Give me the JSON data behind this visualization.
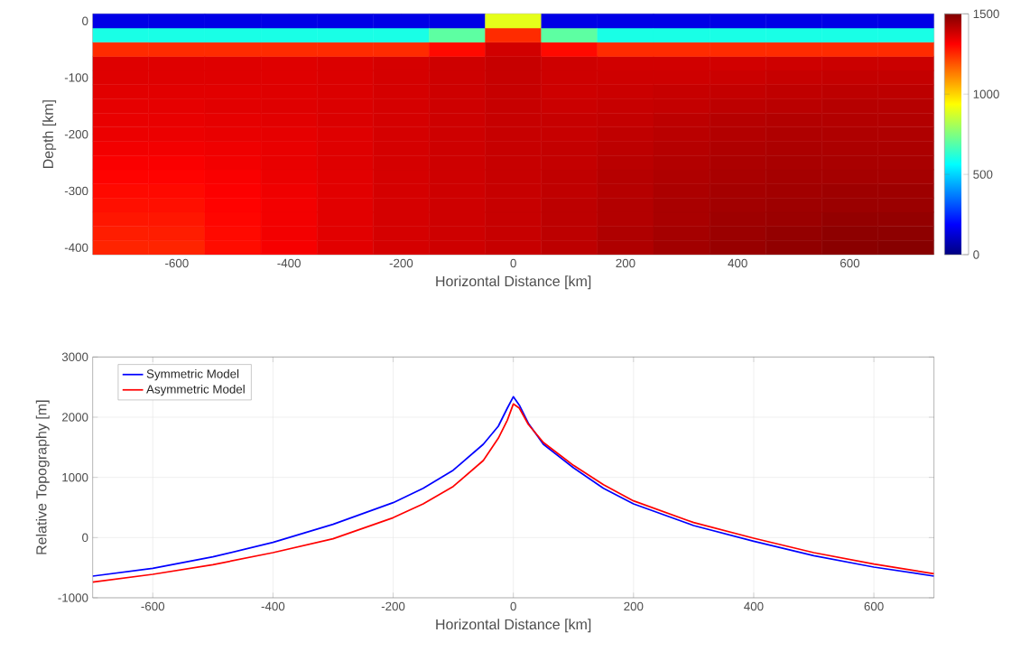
{
  "chart_data": [
    {
      "type": "heatmap",
      "xlabel": "Horizontal Distance [km]",
      "ylabel": "Depth [km]",
      "clim": [
        0,
        1500
      ],
      "cticks": [
        0,
        500,
        1000,
        1500
      ],
      "categories": [
        null,
        "-600",
        null,
        "-400",
        null,
        "-200",
        null,
        "0",
        null,
        "200",
        null,
        "400",
        null,
        "600",
        null
      ],
      "y_categories": [
        "0",
        null,
        null,
        null,
        "-100",
        null,
        null,
        null,
        "-200",
        null,
        null,
        null,
        "-300",
        null,
        null,
        null,
        "-400"
      ],
      "cells": [
        [
          150,
          150,
          150,
          150,
          150,
          150,
          150,
          900,
          150,
          150,
          150,
          150,
          150,
          150,
          150
        ],
        [
          600,
          600,
          600,
          600,
          600,
          600,
          700,
          1250,
          700,
          600,
          600,
          600,
          600,
          600,
          600
        ],
        [
          1250,
          1250,
          1250,
          1250,
          1250,
          1250,
          1300,
          1380,
          1300,
          1250,
          1250,
          1250,
          1250,
          1250,
          1250
        ],
        [
          1360,
          1360,
          1360,
          1360,
          1365,
          1375,
          1385,
          1395,
          1385,
          1380,
          1380,
          1380,
          1385,
          1390,
          1390
        ],
        [
          1360,
          1360,
          1360,
          1360,
          1365,
          1375,
          1385,
          1395,
          1385,
          1385,
          1385,
          1390,
          1395,
          1400,
          1400
        ],
        [
          1355,
          1355,
          1355,
          1360,
          1365,
          1375,
          1385,
          1395,
          1385,
          1390,
          1395,
          1400,
          1405,
          1410,
          1410
        ],
        [
          1350,
          1350,
          1355,
          1360,
          1365,
          1375,
          1385,
          1395,
          1390,
          1395,
          1400,
          1410,
          1415,
          1420,
          1420
        ],
        [
          1345,
          1345,
          1350,
          1355,
          1365,
          1375,
          1385,
          1395,
          1395,
          1400,
          1410,
          1420,
          1425,
          1425,
          1425
        ],
        [
          1340,
          1340,
          1345,
          1350,
          1360,
          1375,
          1385,
          1395,
          1395,
          1405,
          1415,
          1425,
          1430,
          1430,
          1430
        ],
        [
          1330,
          1330,
          1335,
          1345,
          1360,
          1375,
          1385,
          1395,
          1400,
          1410,
          1420,
          1430,
          1435,
          1435,
          1435
        ],
        [
          1320,
          1320,
          1330,
          1345,
          1360,
          1375,
          1385,
          1395,
          1400,
          1415,
          1425,
          1435,
          1440,
          1440,
          1440
        ],
        [
          1310,
          1310,
          1320,
          1340,
          1355,
          1375,
          1385,
          1395,
          1405,
          1420,
          1430,
          1440,
          1445,
          1445,
          1445
        ],
        [
          1300,
          1300,
          1315,
          1335,
          1355,
          1375,
          1385,
          1395,
          1405,
          1420,
          1435,
          1445,
          1450,
          1455,
          1455
        ],
        [
          1290,
          1290,
          1310,
          1330,
          1355,
          1375,
          1385,
          1395,
          1410,
          1425,
          1440,
          1450,
          1455,
          1460,
          1460
        ],
        [
          1280,
          1280,
          1305,
          1330,
          1355,
          1375,
          1385,
          1395,
          1410,
          1425,
          1440,
          1455,
          1460,
          1470,
          1470
        ],
        [
          1270,
          1270,
          1300,
          1330,
          1355,
          1375,
          1385,
          1395,
          1410,
          1430,
          1445,
          1460,
          1470,
          1480,
          1480
        ],
        [
          1260,
          1260,
          1295,
          1325,
          1355,
          1375,
          1385,
          1395,
          1410,
          1430,
          1450,
          1465,
          1475,
          1485,
          1490
        ]
      ]
    },
    {
      "type": "line",
      "xlabel": "Horizontal Distance [km]",
      "ylabel": "Relative Topography [m]",
      "xlim": [
        -700,
        700
      ],
      "xticks": [
        -600,
        -400,
        -200,
        0,
        200,
        400,
        600
      ],
      "ylim": [
        -1000,
        3000
      ],
      "yticks": [
        -1000,
        0,
        1000,
        2000,
        3000
      ],
      "grid": true,
      "legend": "top left",
      "marker": "none",
      "line_style": "solid",
      "x": [
        -700,
        -600,
        -500,
        -400,
        -300,
        -200,
        -150,
        -100,
        -50,
        -25,
        -10,
        0,
        10,
        25,
        50,
        100,
        150,
        200,
        300,
        400,
        500,
        600,
        700
      ],
      "series": [
        {
          "name": "Symmetric Model",
          "color": "#0000ff",
          "values": [
            -640,
            -510,
            -320,
            -80,
            220,
            580,
            820,
            1120,
            1550,
            1850,
            2150,
            2340,
            2200,
            1900,
            1550,
            1160,
            820,
            560,
            200,
            -60,
            -300,
            -490,
            -640
          ]
        },
        {
          "name": "Asymmetric Model",
          "color": "#ff0000",
          "values": [
            -740,
            -610,
            -450,
            -250,
            -20,
            330,
            560,
            850,
            1280,
            1650,
            1950,
            2220,
            2150,
            1880,
            1580,
            1200,
            880,
            610,
            250,
            -10,
            -250,
            -440,
            -600
          ]
        }
      ]
    }
  ]
}
